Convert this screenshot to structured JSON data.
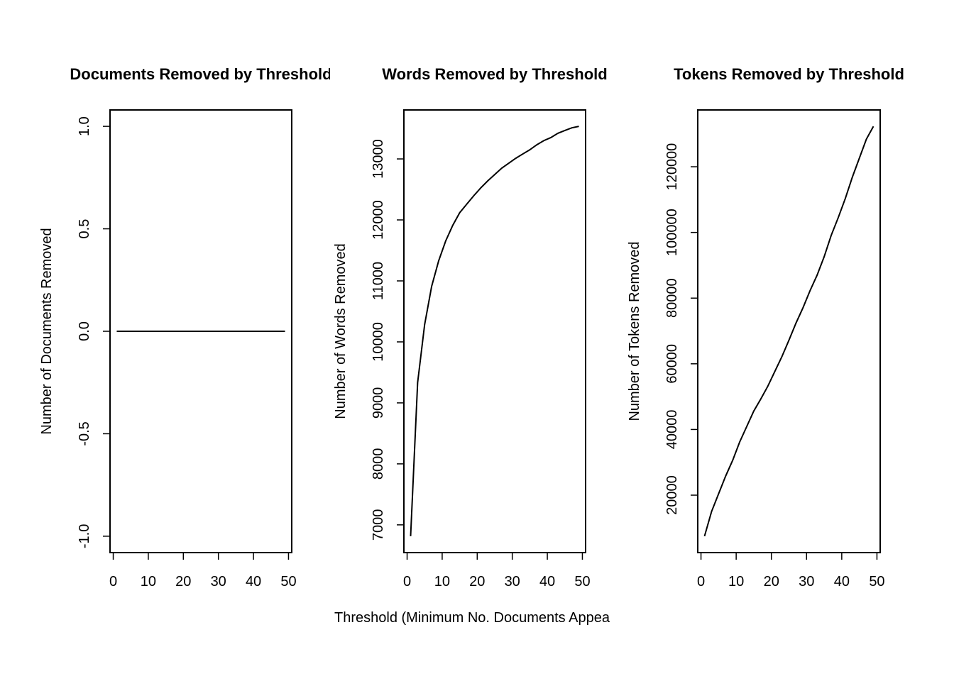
{
  "chart_data": [
    {
      "type": "line",
      "title": "Documents Removed by Threshold",
      "ylabel": "Number of Documents Removed",
      "x": [
        1,
        3,
        5,
        7,
        9,
        11,
        13,
        15,
        17,
        19,
        21,
        23,
        25,
        27,
        29,
        31,
        33,
        35,
        37,
        39,
        41,
        43,
        45,
        47,
        49
      ],
      "values": [
        0,
        0,
        0,
        0,
        0,
        0,
        0,
        0,
        0,
        0,
        0,
        0,
        0,
        0,
        0,
        0,
        0,
        0,
        0,
        0,
        0,
        0,
        0,
        0,
        0
      ],
      "color": "#000000",
      "xlim": [
        -0.92,
        50.92
      ],
      "xticks": [
        0,
        10,
        20,
        30,
        40,
        50
      ],
      "ylim": [
        -1.08,
        1.08
      ],
      "yticks": [
        {
          "value": -1,
          "label": "-1.0"
        },
        -0.5,
        {
          "value": 0,
          "label": "0.0"
        },
        0.5,
        {
          "value": 1,
          "label": "1.0"
        }
      ]
    },
    {
      "type": "line",
      "title": "Words Removed by Threshold",
      "ylabel": "Number of Words Removed",
      "xlabel": "Threshold (Minimum No. Documents Appea",
      "x": [
        1,
        3,
        5,
        7,
        9,
        11,
        13,
        15,
        17,
        19,
        21,
        23,
        25,
        27,
        29,
        31,
        33,
        35,
        37,
        39,
        41,
        43,
        45,
        47,
        49
      ],
      "values": [
        6814,
        9333,
        10284,
        10911,
        11329,
        11654,
        11909,
        12118,
        12257,
        12396,
        12524,
        12640,
        12744,
        12849,
        12930,
        13011,
        13081,
        13150,
        13232,
        13300,
        13350,
        13420,
        13466,
        13510,
        13534
      ],
      "color": "#000000",
      "xlim": [
        -0.92,
        50.92
      ],
      "xticks": [
        0,
        10,
        20,
        30,
        40,
        50
      ],
      "ylim": [
        6545,
        13803
      ],
      "yticks": [
        7000,
        8000,
        9000,
        10000,
        11000,
        12000,
        13000
      ]
    },
    {
      "type": "line",
      "title": "Tokens Removed by Threshold",
      "ylabel": "Number of Tokens Removed",
      "x": [
        1,
        3,
        5,
        7,
        9,
        11,
        13,
        15,
        17,
        19,
        21,
        23,
        25,
        27,
        29,
        31,
        33,
        35,
        37,
        39,
        41,
        43,
        45,
        47,
        49
      ],
      "values": [
        7500,
        15000,
        20400,
        25800,
        30600,
        36200,
        40900,
        45600,
        49300,
        53200,
        57700,
        62200,
        67200,
        72400,
        77100,
        82300,
        87000,
        92600,
        99100,
        104500,
        110300,
        116800,
        122600,
        128400,
        132300
      ],
      "color": "#000000",
      "xlim": [
        -0.92,
        50.92
      ],
      "xticks": [
        0,
        10,
        20,
        30,
        40,
        50
      ],
      "ylim": [
        2508,
        137292
      ],
      "yticks": [
        20000,
        40000,
        60000,
        80000,
        100000,
        120000
      ]
    }
  ]
}
